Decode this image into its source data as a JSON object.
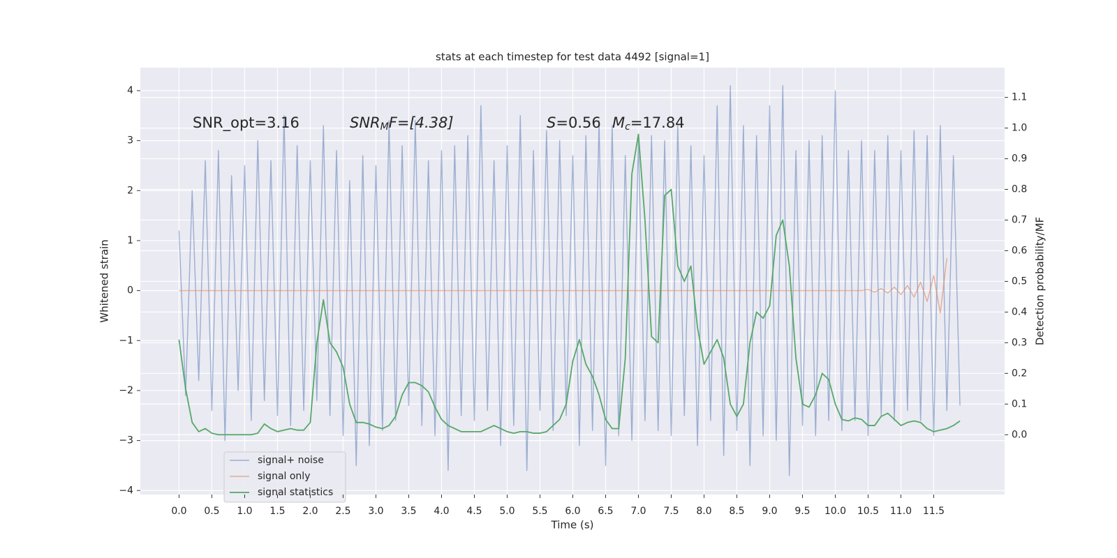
{
  "chart_data": {
    "type": "line",
    "title": "stats at each timestep for test data 4492 [signal=1]",
    "xlabel": "Time (s)",
    "ylabel": "Whitened strain",
    "y2label": "Detection probability/MF",
    "annotations": {
      "snr_opt": "SNR_opt=3.16",
      "snr_mf": [
        "SNR",
        "M",
        "F=[4.38]"
      ],
      "s": [
        "S",
        "=0.56"
      ],
      "mc": [
        "M",
        "c",
        "=17.84"
      ]
    },
    "x": [
      0,
      0.1,
      0.2,
      0.3,
      0.4,
      0.5,
      0.6,
      0.7,
      0.8,
      0.9,
      1,
      1.1,
      1.2,
      1.3,
      1.4,
      1.5,
      1.6,
      1.7,
      1.8,
      1.9,
      2,
      2.1,
      2.2,
      2.3,
      2.4,
      2.5,
      2.6,
      2.7,
      2.8,
      2.9,
      3,
      3.1,
      3.2,
      3.3,
      3.4,
      3.5,
      3.6,
      3.7,
      3.8,
      3.9,
      4,
      4.1,
      4.2,
      4.3,
      4.4,
      4.5,
      4.6,
      4.7,
      4.8,
      4.9,
      5,
      5.1,
      5.2,
      5.3,
      5.4,
      5.5,
      5.6,
      5.7,
      5.8,
      5.9,
      6,
      6.1,
      6.2,
      6.3,
      6.4,
      6.5,
      6.6,
      6.7,
      6.8,
      6.9,
      7,
      7.1,
      7.2,
      7.3,
      7.4,
      7.5,
      7.6,
      7.7,
      7.8,
      7.9,
      8,
      8.1,
      8.2,
      8.3,
      8.4,
      8.5,
      8.6,
      8.7,
      8.8,
      8.9,
      9,
      9.1,
      9.2,
      9.3,
      9.4,
      9.5,
      9.6,
      9.7,
      9.8,
      9.9,
      10,
      10.1,
      10.2,
      10.3,
      10.4,
      10.5,
      10.6,
      10.7,
      10.8,
      10.9,
      11,
      11.1,
      11.2,
      11.3,
      11.4,
      11.5,
      11.6,
      11.7,
      11.8,
      11.9
    ],
    "series": [
      {
        "name": "signal+ noise",
        "color": "#4c72b0",
        "values": [
          1.2,
          -2.1,
          2.0,
          -1.8,
          2.6,
          -2.4,
          2.8,
          -3.0,
          2.3,
          -2.0,
          2.5,
          -2.6,
          3.0,
          -2.2,
          2.6,
          -2.5,
          3.5,
          -2.7,
          2.9,
          -2.4,
          2.6,
          -2.2,
          3.3,
          -2.5,
          2.8,
          -2.9,
          2.2,
          -3.5,
          2.7,
          -3.1,
          2.5,
          -2.8,
          3.4,
          -2.6,
          2.9,
          -2.3,
          3.4,
          -2.7,
          2.6,
          -2.9,
          2.8,
          -3.6,
          2.9,
          -2.5,
          3.1,
          -2.6,
          3.7,
          -2.4,
          2.6,
          -3.1,
          2.9,
          -2.7,
          3.5,
          -3.6,
          2.8,
          -2.4,
          3.2,
          -2.8,
          3.0,
          -2.5,
          2.7,
          -3.1,
          3.1,
          -2.8,
          3.4,
          -3.5,
          3.3,
          -2.9,
          2.7,
          -3.0,
          3.0,
          -2.6,
          3.1,
          -2.8,
          3.0,
          -2.9,
          3.3,
          -2.5,
          2.9,
          -3.1,
          2.7,
          -2.6,
          3.7,
          -3.3,
          4.1,
          -2.8,
          3.3,
          -3.5,
          3.1,
          -2.9,
          3.7,
          -3.0,
          4.1,
          -3.7,
          2.8,
          -2.7,
          3.0,
          -2.9,
          3.1,
          -2.6,
          4.0,
          -2.8,
          2.8,
          -2.6,
          3.0,
          -2.9,
          2.8,
          -2.5,
          3.1,
          -2.6,
          2.8,
          -2.4,
          3.2,
          -2.6,
          3.1,
          -2.9,
          3.3,
          -2.4,
          2.7,
          -2.3
        ]
      },
      {
        "name": "signal only",
        "color": "#dd8452",
        "values": [
          0,
          0,
          0,
          0,
          0,
          0,
          0,
          0,
          0,
          0,
          0,
          0,
          0,
          0,
          0,
          0,
          0,
          0,
          0,
          0,
          0,
          0,
          0,
          0,
          0,
          0,
          0,
          0,
          0,
          0,
          0,
          0,
          0,
          0,
          0,
          0,
          0,
          0,
          0,
          0,
          0,
          0,
          0,
          0,
          0,
          0,
          0,
          0,
          0,
          0,
          0,
          0,
          0,
          0,
          0,
          0,
          0,
          0,
          0,
          0,
          0,
          0,
          0,
          0,
          0,
          0,
          0,
          0,
          0,
          0,
          0,
          0,
          0,
          0,
          0,
          0,
          0,
          0,
          0,
          0,
          0,
          0,
          0,
          0,
          0,
          0,
          0,
          0,
          0,
          0,
          0,
          0,
          0,
          0,
          0,
          0,
          0,
          0,
          0,
          0,
          0,
          0,
          0,
          0,
          0,
          0.02,
          -0.03,
          0.04,
          -0.05,
          0.07,
          -0.08,
          0.1,
          -0.13,
          0.17,
          -0.22,
          0.3,
          -0.45,
          0.65,
          null,
          null
        ]
      },
      {
        "name": "signal statistics",
        "color": "#55a868",
        "axis": "y2",
        "values": [
          0.31,
          0.15,
          0.04,
          0.01,
          0.02,
          0.005,
          0,
          0,
          0,
          0,
          0,
          0,
          0.005,
          0.035,
          0.02,
          0.01,
          0.015,
          0.02,
          0.015,
          0.015,
          0.04,
          0.3,
          0.44,
          0.3,
          0.27,
          0.22,
          0.1,
          0.04,
          0.04,
          0.035,
          0.025,
          0.02,
          0.03,
          0.06,
          0.13,
          0.17,
          0.17,
          0.16,
          0.14,
          0.09,
          0.05,
          0.03,
          0.02,
          0.01,
          0.01,
          0.01,
          0.01,
          0.02,
          0.03,
          0.02,
          0.01,
          0.005,
          0.01,
          0.01,
          0.005,
          0.005,
          0.01,
          0.03,
          0.05,
          0.1,
          0.24,
          0.31,
          0.23,
          0.19,
          0.13,
          0.05,
          0.02,
          0.02,
          0.25,
          0.85,
          0.98,
          0.7,
          0.32,
          0.3,
          0.78,
          0.8,
          0.55,
          0.5,
          0.55,
          0.35,
          0.23,
          0.27,
          0.31,
          0.25,
          0.1,
          0.06,
          0.1,
          0.3,
          0.4,
          0.38,
          0.42,
          0.65,
          0.7,
          0.55,
          0.25,
          0.1,
          0.09,
          0.13,
          0.2,
          0.18,
          0.1,
          0.05,
          0.045,
          0.055,
          0.05,
          0.03,
          0.03,
          0.06,
          0.07,
          0.05,
          0.03,
          0.04,
          0.045,
          0.04,
          0.02,
          0.01,
          0.015,
          0.02,
          0.03,
          0.045
        ]
      }
    ],
    "xlim": [
      -0.59,
      12.58
    ],
    "ylim": [
      -4.08,
      4.46
    ],
    "y2lim": [
      -0.195,
      1.197
    ],
    "xticks": [
      {
        "value": 0,
        "label": "0.0"
      },
      {
        "value": 0.5,
        "label": "0.5"
      },
      {
        "value": 1,
        "label": "1.0"
      },
      {
        "value": 1.5,
        "label": "1.5"
      },
      {
        "value": 2,
        "label": "2.0"
      },
      {
        "value": 2.5,
        "label": "2.5"
      },
      {
        "value": 3,
        "label": "3.0"
      },
      {
        "value": 3.5,
        "label": "3.5"
      },
      {
        "value": 4,
        "label": "4.0"
      },
      {
        "value": 4.5,
        "label": "4.5"
      },
      {
        "value": 5,
        "label": "5.0"
      },
      {
        "value": 5.5,
        "label": "5.5"
      },
      {
        "value": 6,
        "label": "6.0"
      },
      {
        "value": 6.5,
        "label": "6.5"
      },
      {
        "value": 7,
        "label": "7.0"
      },
      {
        "value": 7.5,
        "label": "7.5"
      },
      {
        "value": 8,
        "label": "8.0"
      },
      {
        "value": 8.5,
        "label": "8.5"
      },
      {
        "value": 9,
        "label": "9.0"
      },
      {
        "value": 9.5,
        "label": "9.5"
      },
      {
        "value": 10,
        "label": "10.0"
      },
      {
        "value": 10.5,
        "label": "10.5"
      },
      {
        "value": 11,
        "label": "11.0"
      },
      {
        "value": 11.5,
        "label": "11.5"
      }
    ],
    "yticks": [
      {
        "value": -4,
        "label": "−4"
      },
      {
        "value": -3,
        "label": "−3"
      },
      {
        "value": -2,
        "label": "−2"
      },
      {
        "value": -1,
        "label": "−1"
      },
      0,
      1,
      2,
      3,
      4
    ],
    "y2ticks": [
      {
        "value": 0,
        "label": "0.0"
      },
      {
        "value": 0.1,
        "label": "0.1"
      },
      {
        "value": 0.2,
        "label": "0.2"
      },
      {
        "value": 0.3,
        "label": "0.3"
      },
      {
        "value": 0.4,
        "label": "0.4"
      },
      {
        "value": 0.5,
        "label": "0.5"
      },
      {
        "value": 0.6,
        "label": "0.6"
      },
      {
        "value": 0.7,
        "label": "0.7"
      },
      {
        "value": 0.8,
        "label": "0.8"
      },
      {
        "value": 0.9,
        "label": "0.9"
      },
      {
        "value": 1,
        "label": "1.0"
      },
      {
        "value": 1.1,
        "label": "1.1"
      }
    ],
    "grid": true,
    "legend": "lower left"
  }
}
